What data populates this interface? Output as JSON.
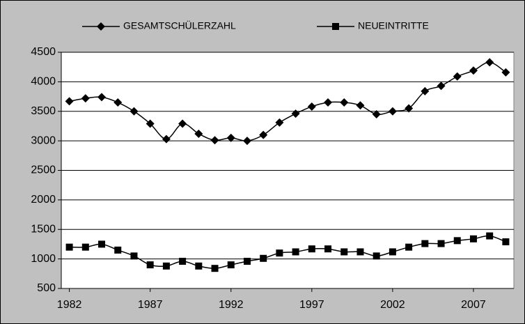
{
  "chart_data": {
    "type": "line",
    "x": [
      1982,
      1983,
      1984,
      1985,
      1986,
      1987,
      1988,
      1989,
      1990,
      1991,
      1992,
      1993,
      1994,
      1995,
      1996,
      1997,
      1998,
      1999,
      2000,
      2001,
      2002,
      2003,
      2004,
      2005,
      2006,
      2007,
      2008,
      2009
    ],
    "series": [
      {
        "name": "GESAMTSCHÜLERZAHL",
        "color": "#000000",
        "marker": "diamond",
        "values": [
          3670,
          3720,
          3740,
          3650,
          3500,
          3290,
          3030,
          3290,
          3120,
          3010,
          3050,
          3000,
          3100,
          3310,
          3460,
          3580,
          3650,
          3650,
          3600,
          3450,
          3500,
          3550,
          3840,
          3930,
          4090,
          4190,
          4330,
          4160
        ]
      },
      {
        "name": "NEUEINTRITTE",
        "color": "#000000",
        "marker": "square",
        "values": [
          1200,
          1200,
          1250,
          1150,
          1050,
          900,
          880,
          960,
          880,
          840,
          900,
          960,
          1010,
          1100,
          1120,
          1170,
          1170,
          1120,
          1120,
          1050,
          1120,
          1200,
          1260,
          1260,
          1310,
          1340,
          1390,
          1290
        ]
      }
    ],
    "xlim": [
      1981.5,
      2009.5
    ],
    "xticks": [
      1982,
      1987,
      1992,
      1997,
      2002,
      2007
    ],
    "ylim": [
      500,
      4500
    ],
    "yticks": [
      500,
      1000,
      1500,
      2000,
      2500,
      3000,
      3500,
      4000,
      4500
    ],
    "grid": true,
    "legend": "top"
  }
}
